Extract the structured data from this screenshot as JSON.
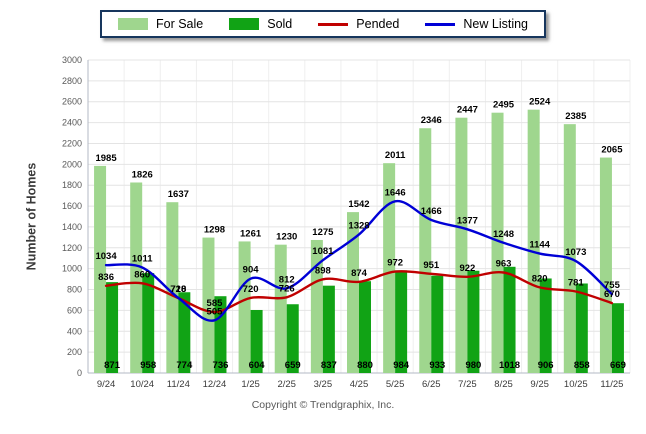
{
  "legend": {
    "items": [
      {
        "label": "For Sale",
        "swatch": "bar",
        "color": "#9fd68e"
      },
      {
        "label": "Sold",
        "swatch": "bar",
        "color": "#11a315"
      },
      {
        "label": "Pended",
        "swatch": "line",
        "color": "#c00000"
      },
      {
        "label": "New Listing",
        "swatch": "line",
        "color": "#0000d6"
      }
    ]
  },
  "y_axis_title": "Number of Homes",
  "footer": "Copyright © Trendgraphix, Inc.",
  "chart_data": {
    "type": "combo",
    "categories": [
      "9/24",
      "10/24",
      "11/24",
      "12/24",
      "1/25",
      "2/25",
      "3/25",
      "4/25",
      "5/25",
      "6/25",
      "7/25",
      "8/25",
      "9/25",
      "10/25",
      "11/25"
    ],
    "bar_series": [
      {
        "name": "For Sale",
        "color": "#9fd68e",
        "values": [
          1985,
          1826,
          1637,
          1298,
          1261,
          1230,
          1275,
          1542,
          2011,
          2346,
          2447,
          2495,
          2524,
          2385,
          2065
        ]
      },
      {
        "name": "Sold",
        "color": "#11a315",
        "values": [
          871,
          958,
          774,
          736,
          604,
          659,
          837,
          880,
          984,
          933,
          980,
          1018,
          906,
          858,
          669
        ]
      }
    ],
    "line_series": [
      {
        "name": "Pended",
        "color": "#c00000",
        "values": [
          836,
          860,
          718,
          585,
          720,
          726,
          898,
          874,
          972,
          951,
          922,
          963,
          820,
          781,
          670
        ]
      },
      {
        "name": "New Listing",
        "color": "#0000d6",
        "values": [
          1034,
          1011,
          720,
          505,
          904,
          812,
          1081,
          1328,
          1646,
          1466,
          1377,
          1248,
          1144,
          1073,
          755
        ]
      }
    ],
    "ylim": [
      0,
      3000
    ],
    "ytick_step": 200,
    "grid": true,
    "legend_position": "top",
    "label_color": "#000000",
    "axis_color": "#b3b9c4",
    "grid_color": "#e4e4e4",
    "tick_label_color": "#595959"
  }
}
